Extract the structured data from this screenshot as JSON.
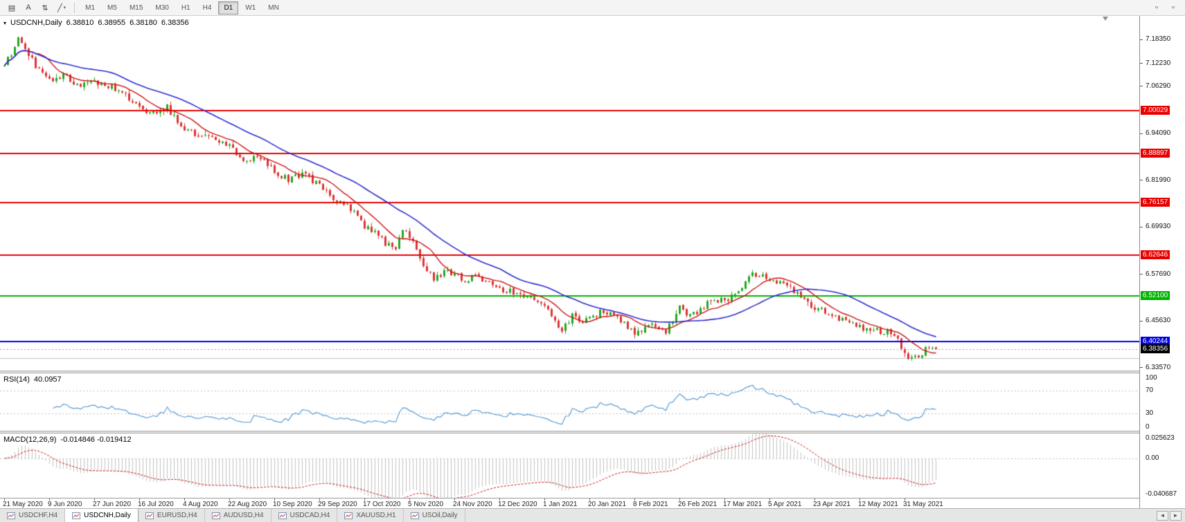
{
  "colors": {
    "candle_up": "#1fa81f",
    "candle_down": "#dd3232",
    "rsi_line": "#5a9bd4",
    "macd_hist": "#c2c2c2",
    "macd_signal": "#cc1111",
    "bid_line_color": "#999999"
  },
  "toolbar": {
    "tools": [
      {
        "name": "chart-window-icon",
        "glyph": "▤"
      },
      {
        "name": "text-tool-icon",
        "glyph": "A"
      },
      {
        "name": "scale-tool-icon",
        "glyph": "⇅"
      },
      {
        "name": "draw-tools-icon",
        "glyph": "╱",
        "chevron": "▾"
      }
    ],
    "timeframes": [
      "M1",
      "M5",
      "M15",
      "M30",
      "H1",
      "H4",
      "D1",
      "W1",
      "MN"
    ],
    "active_timeframe": "D1",
    "right_tools": [
      {
        "name": "toolbar-extra-icon-1",
        "glyph": "▫"
      },
      {
        "name": "toolbar-extra-icon-2",
        "glyph": "▫"
      }
    ]
  },
  "chart_header": {
    "collapse_glyph": "▾",
    "symbol_period": "USDCNH,Daily",
    "open": "6.38810",
    "high": "6.38955",
    "low": "6.38180",
    "close": "6.38356"
  },
  "chart_data": {
    "type": "candlestick",
    "symbol": "USDCNH",
    "timeframe": "Daily",
    "num_candles": 270,
    "label_every": 13,
    "last_candle": {
      "open": 6.3881,
      "high": 6.38955,
      "low": 6.3818,
      "close": 6.38356
    },
    "price_axis": {
      "min": 6.328,
      "max": 7.245,
      "ticks": [
        {
          "label": "7.18350",
          "value": 7.1835
        },
        {
          "label": "7.12230",
          "value": 7.1223
        },
        {
          "label": "7.06290",
          "value": 7.0629
        },
        {
          "label": "6.94090",
          "value": 6.9409
        },
        {
          "label": "6.81990",
          "value": 6.8199
        },
        {
          "label": "6.69930",
          "value": 6.6993
        },
        {
          "label": "6.57690",
          "value": 6.5769
        },
        {
          "label": "6.45630",
          "value": 6.4563
        },
        {
          "label": "6.33570",
          "value": 6.3357
        }
      ]
    },
    "time_axis_labels": [
      "21 May 2020",
      "9 Jun 2020",
      "27 Jun 2020",
      "16 Jul 2020",
      "4 Aug 2020",
      "22 Aug 2020",
      "10 Sep 2020",
      "29 Sep 2020",
      "17 Oct 2020",
      "5 Nov 2020",
      "24 Nov 2020",
      "12 Dec 2020",
      "1 Jan 2021",
      "20 Jan 2021",
      "8 Feb 2021",
      "26 Feb 2021",
      "17 Mar 2021",
      "5 Apr 2021",
      "23 Apr 2021",
      "12 May 2021",
      "31 May 2021"
    ],
    "price_path_anchors": [
      [
        0,
        7.115
      ],
      [
        2,
        7.15
      ],
      [
        4,
        7.192
      ],
      [
        6,
        7.16
      ],
      [
        9,
        7.115
      ],
      [
        13,
        7.075
      ],
      [
        17,
        7.092
      ],
      [
        21,
        7.063
      ],
      [
        26,
        7.073
      ],
      [
        30,
        7.065
      ],
      [
        34,
        7.05
      ],
      [
        39,
        7.005
      ],
      [
        43,
        6.995
      ],
      [
        47,
        7.008
      ],
      [
        52,
        6.95
      ],
      [
        56,
        6.938
      ],
      [
        60,
        6.925
      ],
      [
        65,
        6.912
      ],
      [
        69,
        6.87
      ],
      [
        73,
        6.88
      ],
      [
        78,
        6.843
      ],
      [
        82,
        6.82
      ],
      [
        86,
        6.835
      ],
      [
        91,
        6.81
      ],
      [
        95,
        6.772
      ],
      [
        99,
        6.755
      ],
      [
        104,
        6.7
      ],
      [
        107,
        6.685
      ],
      [
        110,
        6.656
      ],
      [
        113,
        6.64
      ],
      [
        115,
        6.695
      ],
      [
        118,
        6.66
      ],
      [
        121,
        6.6
      ],
      [
        124,
        6.565
      ],
      [
        127,
        6.582
      ],
      [
        130,
        6.578
      ],
      [
        133,
        6.558
      ],
      [
        136,
        6.572
      ],
      [
        140,
        6.553
      ],
      [
        143,
        6.538
      ],
      [
        147,
        6.53
      ],
      [
        150,
        6.52
      ],
      [
        153,
        6.508
      ],
      [
        156,
        6.5
      ],
      [
        158,
        6.462
      ],
      [
        161,
        6.43
      ],
      [
        164,
        6.468
      ],
      [
        167,
        6.455
      ],
      [
        169,
        6.462
      ],
      [
        172,
        6.478
      ],
      [
        175,
        6.472
      ],
      [
        178,
        6.455
      ],
      [
        180,
        6.44
      ],
      [
        182,
        6.428
      ],
      [
        185,
        6.44
      ],
      [
        188,
        6.447
      ],
      [
        191,
        6.43
      ],
      [
        193,
        6.455
      ],
      [
        195,
        6.49
      ],
      [
        197,
        6.468
      ],
      [
        200,
        6.475
      ],
      [
        203,
        6.5
      ],
      [
        206,
        6.508
      ],
      [
        209,
        6.513
      ],
      [
        212,
        6.53
      ],
      [
        215,
        6.572
      ],
      [
        218,
        6.578
      ],
      [
        221,
        6.565
      ],
      [
        224,
        6.558
      ],
      [
        227,
        6.54
      ],
      [
        230,
        6.522
      ],
      [
        234,
        6.49
      ],
      [
        237,
        6.478
      ],
      [
        240,
        6.468
      ],
      [
        243,
        6.455
      ],
      [
        246,
        6.44
      ],
      [
        249,
        6.438
      ],
      [
        252,
        6.43
      ],
      [
        255,
        6.428
      ],
      [
        258,
        6.405
      ],
      [
        260,
        6.372
      ],
      [
        262,
        6.358
      ],
      [
        264,
        6.362
      ],
      [
        266,
        6.383
      ],
      [
        268,
        6.387
      ],
      [
        269,
        6.3836
      ]
    ],
    "hlines": [
      {
        "price": 7.00029,
        "label": "7.00029",
        "color": "#e80000",
        "width": 2
      },
      {
        "price": 6.88897,
        "label": "6.88897",
        "color": "#e80000",
        "width": 2
      },
      {
        "price": 6.76157,
        "label": "6.76157",
        "color": "#e80000",
        "width": 2
      },
      {
        "price": 6.62646,
        "label": "6.62646",
        "color": "#e80000",
        "width": 2
      },
      {
        "price": 6.521,
        "label": "6.52100",
        "color": "#00b400",
        "width": 2
      },
      {
        "price": 6.40244,
        "label": "6.40244",
        "color": "#0000e0",
        "width": 2
      }
    ],
    "minor_line": {
      "price": 6.36,
      "color": "#c0c0c0"
    },
    "bid_line": {
      "price": 6.38356,
      "label": "6.38356"
    },
    "moving_averages": [
      {
        "period": 10,
        "color": "#cc1111"
      },
      {
        "period": 30,
        "color": "#2c2cd0"
      }
    ],
    "rsi": {
      "label": "RSI(14)",
      "value": "40.0957",
      "period": 14,
      "levels": [
        30,
        70
      ],
      "scale": {
        "min": 0,
        "max": 100,
        "ticks": [
          {
            "label": "100",
            "value": 100
          },
          {
            "label": "70",
            "value": 70
          },
          {
            "label": "30",
            "value": 30
          },
          {
            "label": "0",
            "value": 0
          }
        ]
      }
    },
    "macd": {
      "label": "MACD(12,26,9)",
      "value": "-0.014846 -0.019412",
      "fast": 12,
      "slow": 26,
      "signal": 9,
      "scale": {
        "min": -0.040687,
        "max": 0.025623,
        "ticks": [
          {
            "label": "0.025623",
            "value": 0.025623
          },
          {
            "label": "0.00",
            "value": 0
          },
          {
            "label": "-0.040687",
            "value": -0.040687
          }
        ]
      }
    }
  },
  "tabs": {
    "items": [
      {
        "label": "USDCHF,H4",
        "active": false
      },
      {
        "label": "USDCNH,Daily",
        "active": true
      },
      {
        "label": "EURUSD,H4",
        "active": false
      },
      {
        "label": "AUDUSD,H4",
        "active": false
      },
      {
        "label": "USDCAD,H4",
        "active": false
      },
      {
        "label": "XAUUSD,H1",
        "active": false
      },
      {
        "label": "USOil,Daily",
        "active": false
      }
    ],
    "scroll_left_glyph": "◄",
    "scroll_right_glyph": "►"
  }
}
